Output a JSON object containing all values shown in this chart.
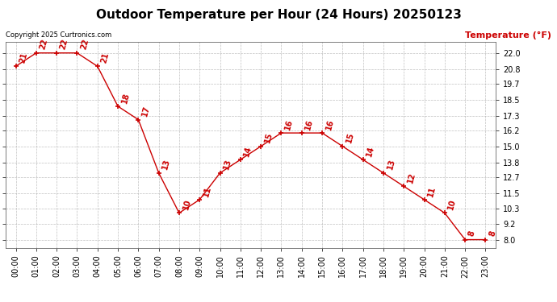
{
  "title": "Outdoor Temperature per Hour (24 Hours) 20250123",
  "copyright": "Copyright 2025 Curtronics.com",
  "ylabel": "Temperature (°F)",
  "hours": [
    0,
    1,
    2,
    3,
    4,
    5,
    6,
    7,
    8,
    9,
    10,
    11,
    12,
    13,
    14,
    15,
    16,
    17,
    18,
    19,
    20,
    21,
    22,
    23
  ],
  "hour_labels": [
    "00:00",
    "01:00",
    "02:00",
    "03:00",
    "04:00",
    "05:00",
    "06:00",
    "07:00",
    "08:00",
    "09:00",
    "10:00",
    "11:00",
    "12:00",
    "13:00",
    "14:00",
    "15:00",
    "16:00",
    "17:00",
    "18:00",
    "19:00",
    "20:00",
    "21:00",
    "22:00",
    "23:00"
  ],
  "temperatures": [
    21,
    22,
    22,
    22,
    21,
    18,
    17,
    13,
    10,
    11,
    13,
    14,
    15,
    16,
    16,
    16,
    15,
    14,
    13,
    12,
    11,
    10,
    8,
    8
  ],
  "temp_labels": [
    "21",
    "22",
    "22",
    "22",
    "21",
    "18",
    "17",
    "13",
    "10",
    "11",
    "13",
    "14",
    "15",
    "16",
    "16",
    "16",
    "15",
    "14",
    "13",
    "12",
    "11",
    "10",
    "8",
    "8"
  ],
  "line_color": "#cc0000",
  "marker_color": "#cc0000",
  "label_color": "#cc0000",
  "ylabel_color": "#cc0000",
  "title_color": "#000000",
  "copyright_color": "#000000",
  "bg_color": "#ffffff",
  "grid_color": "#b0b0b0",
  "ytick_values": [
    8.0,
    9.2,
    10.3,
    11.5,
    12.7,
    13.8,
    15.0,
    16.2,
    17.3,
    18.5,
    19.7,
    20.8,
    22.0
  ],
  "ylim": [
    7.4,
    22.8
  ],
  "title_fontsize": 11,
  "label_fontsize": 7,
  "tick_fontsize": 7,
  "ylabel_fontsize": 8,
  "copyright_fontsize": 6
}
